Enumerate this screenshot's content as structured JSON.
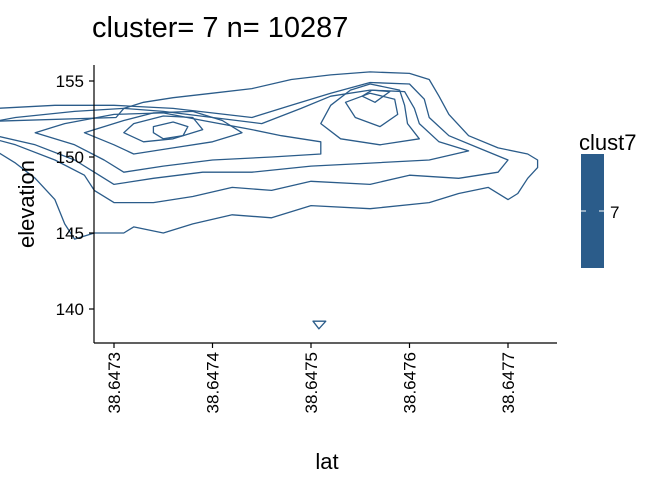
{
  "chart_data": {
    "type": "contour",
    "title": "cluster= 7 n= 10287",
    "xlabel": "lat",
    "ylabel": "elevation",
    "xlim": [
      38.64728,
      38.64774
    ],
    "ylim": [
      137.5,
      157
    ],
    "x_ticks": [
      38.6473,
      38.6474,
      38.6475,
      38.6476,
      38.6477
    ],
    "x_tick_labels": [
      "38.6473",
      "38.6474",
      "38.6475",
      "38.6476",
      "38.6477"
    ],
    "y_ticks": [
      140,
      145,
      150,
      155
    ],
    "y_tick_labels": [
      "140",
      "145",
      "150",
      "155"
    ],
    "grid": false,
    "series": [
      {
        "name": "7",
        "color": "#2b5c8a",
        "contours": [
          {
            "points": [
              [
                38.647302,
                152.6
              ],
              [
                38.64731,
                153.2
              ],
              [
                38.64733,
                153.6
              ],
              [
                38.64736,
                153.9
              ],
              [
                38.6474,
                154.2
              ],
              [
                38.64744,
                154.5
              ],
              [
                38.64748,
                155.1
              ],
              [
                38.64752,
                155.4
              ],
              [
                38.64756,
                155.6
              ],
              [
                38.6476,
                155.5
              ],
              [
                38.64762,
                155.1
              ],
              [
                38.64763,
                154.0
              ],
              [
                38.64764,
                152.8
              ],
              [
                38.64766,
                151.4
              ],
              [
                38.64769,
                150.6
              ],
              [
                38.64772,
                150.2
              ],
              [
                38.64773,
                149.8
              ],
              [
                38.64773,
                149.3
              ],
              [
                38.64772,
                148.6
              ],
              [
                38.64771,
                147.6
              ],
              [
                38.6477,
                147.2
              ],
              [
                38.64768,
                148.0
              ],
              [
                38.64765,
                147.6
              ],
              [
                38.64762,
                147.0
              ],
              [
                38.64756,
                146.6
              ],
              [
                38.6475,
                146.8
              ],
              [
                38.64746,
                146.0
              ],
              [
                38.64742,
                146.2
              ],
              [
                38.64738,
                145.6
              ],
              [
                38.64735,
                145.0
              ],
              [
                38.64732,
                145.4
              ],
              [
                38.64731,
                145.0
              ],
              [
                38.64728,
                145.0
              ],
              [
                38.64726,
                144.6
              ],
              [
                38.64725,
                145.6
              ],
              [
                38.64724,
                147.2
              ],
              [
                38.64722,
                148.6
              ],
              [
                38.6472,
                149.6
              ],
              [
                38.64717,
                150.8
              ],
              [
                38.64713,
                151.6
              ],
              [
                38.64708,
                152.0
              ],
              [
                38.64704,
                151.8
              ],
              [
                38.64701,
                151.6
              ],
              [
                38.647002,
                152.0
              ],
              [
                38.647302,
                152.6
              ]
            ],
            "closed": true
          },
          {
            "points": [
              [
                38.64744,
                152.6
              ],
              [
                38.64748,
                153.4
              ],
              [
                38.64752,
                154.2
              ],
              [
                38.64756,
                154.9
              ],
              [
                38.6476,
                154.8
              ],
              [
                38.647615,
                153.8
              ],
              [
                38.64762,
                152.6
              ],
              [
                38.64764,
                151.4
              ],
              [
                38.64767,
                150.6
              ],
              [
                38.6477,
                149.8
              ],
              [
                38.64769,
                149.0
              ],
              [
                38.64765,
                148.6
              ],
              [
                38.6476,
                148.8
              ],
              [
                38.64756,
                148.2
              ],
              [
                38.6475,
                148.4
              ],
              [
                38.64746,
                147.8
              ],
              [
                38.64742,
                148.0
              ],
              [
                38.64738,
                147.4
              ],
              [
                38.64734,
                147.0
              ],
              [
                38.6473,
                147.0
              ],
              [
                38.64728,
                147.8
              ],
              [
                38.64727,
                148.8
              ],
              [
                38.64724,
                149.8
              ],
              [
                38.6472,
                150.8
              ],
              [
                38.64716,
                151.5
              ],
              [
                38.64712,
                152.0
              ],
              [
                38.64709,
                152.4
              ],
              [
                38.64712,
                152.9
              ],
              [
                38.64718,
                153.2
              ],
              [
                38.64724,
                153.4
              ],
              [
                38.6473,
                153.4
              ],
              [
                38.64736,
                153.2
              ],
              [
                38.64744,
                152.6
              ]
            ],
            "closed": true
          },
          {
            "points": [
              [
                38.64735,
                153.0
              ],
              [
                38.6474,
                152.6
              ],
              [
                38.64745,
                152.2
              ],
              [
                38.64749,
                153.2
              ],
              [
                38.64752,
                154.0
              ],
              [
                38.64756,
                154.4
              ],
              [
                38.647595,
                154.3
              ],
              [
                38.647605,
                153.2
              ],
              [
                38.64761,
                152.2
              ],
              [
                38.64763,
                151.0
              ],
              [
                38.64766,
                150.4
              ],
              [
                38.64762,
                149.8
              ],
              [
                38.64756,
                149.6
              ],
              [
                38.6475,
                149.4
              ],
              [
                38.64744,
                149.0
              ],
              [
                38.64739,
                149.0
              ],
              [
                38.64734,
                148.6
              ],
              [
                38.6473,
                148.2
              ],
              [
                38.64728,
                149.0
              ],
              [
                38.64726,
                149.8
              ],
              [
                38.64722,
                150.8
              ],
              [
                38.64718,
                151.4
              ],
              [
                38.64715,
                152.0
              ],
              [
                38.6472,
                152.6
              ],
              [
                38.64726,
                153.0
              ],
              [
                38.64731,
                153.2
              ],
              [
                38.64735,
                153.0
              ]
            ],
            "closed": true
          },
          {
            "points": [
              [
                38.64739,
                152.4
              ],
              [
                38.64744,
                151.8
              ],
              [
                38.64747,
                151.4
              ],
              [
                38.64751,
                151.0
              ],
              [
                38.64751,
                150.2
              ],
              [
                38.64746,
                150.0
              ],
              [
                38.6474,
                149.8
              ],
              [
                38.64735,
                149.4
              ],
              [
                38.64731,
                149.0
              ],
              [
                38.64729,
                149.8
              ],
              [
                38.64726,
                150.8
              ],
              [
                38.64722,
                151.6
              ],
              [
                38.64725,
                152.2
              ],
              [
                38.6473,
                152.8
              ],
              [
                38.64735,
                152.9
              ],
              [
                38.64739,
                152.4
              ]
            ],
            "closed": true
          },
          {
            "points": [
              [
                38.64754,
                154.4
              ],
              [
                38.64756,
                154.8
              ],
              [
                38.64759,
                154.4
              ],
              [
                38.647595,
                153.4
              ],
              [
                38.647598,
                152.2
              ],
              [
                38.64761,
                151.2
              ],
              [
                38.64757,
                150.8
              ],
              [
                38.64753,
                151.2
              ],
              [
                38.64751,
                152.2
              ],
              [
                38.64752,
                153.4
              ],
              [
                38.64754,
                154.4
              ]
            ],
            "closed": true
          },
          {
            "points": [
              [
                38.64731,
                152.4
              ],
              [
                38.64734,
                152.9
              ],
              [
                38.64738,
                153.0
              ],
              [
                38.64741,
                152.4
              ],
              [
                38.64743,
                151.6
              ],
              [
                38.6474,
                151.0
              ],
              [
                38.64736,
                150.6
              ],
              [
                38.64732,
                150.2
              ],
              [
                38.6473,
                150.8
              ],
              [
                38.64727,
                151.6
              ],
              [
                38.64729,
                152.0
              ],
              [
                38.64731,
                152.4
              ]
            ],
            "closed": true
          },
          {
            "points": [
              [
                38.647535,
                153.6
              ],
              [
                38.64756,
                154.2
              ],
              [
                38.647585,
                153.8
              ],
              [
                38.647588,
                152.8
              ],
              [
                38.64757,
                152.0
              ],
              [
                38.647545,
                152.6
              ],
              [
                38.647535,
                153.6
              ]
            ],
            "closed": true
          },
          {
            "points": [
              [
                38.64732,
                152.2
              ],
              [
                38.64735,
                152.7
              ],
              [
                38.64738,
                152.6
              ],
              [
                38.64739,
                151.8
              ],
              [
                38.64736,
                151.2
              ],
              [
                38.64733,
                151.0
              ],
              [
                38.64731,
                151.6
              ],
              [
                38.64732,
                152.2
              ]
            ],
            "closed": true
          },
          {
            "points": [
              [
                38.64734,
                152.0
              ],
              [
                38.64736,
                152.3
              ],
              [
                38.647375,
                152.0
              ],
              [
                38.64737,
                151.4
              ],
              [
                38.64735,
                151.2
              ],
              [
                38.64734,
                151.6
              ],
              [
                38.64734,
                152.0
              ]
            ],
            "closed": true
          },
          {
            "points": [
              [
                38.647552,
                154.0
              ],
              [
                38.647562,
                154.4
              ],
              [
                38.64758,
                154.3
              ],
              [
                38.647565,
                153.6
              ],
              [
                38.647552,
                154.0
              ]
            ],
            "closed": true
          },
          {
            "points": [
              [
                38.647502,
                139.2
              ],
              [
                38.647508,
                138.7
              ],
              [
                38.647515,
                139.2
              ],
              [
                38.647502,
                139.2
              ]
            ],
            "closed": true
          }
        ]
      }
    ],
    "legend": {
      "title": "clust7",
      "placement": "right",
      "entries": [
        {
          "label": "7",
          "color": "#2b5c8a"
        }
      ]
    }
  }
}
